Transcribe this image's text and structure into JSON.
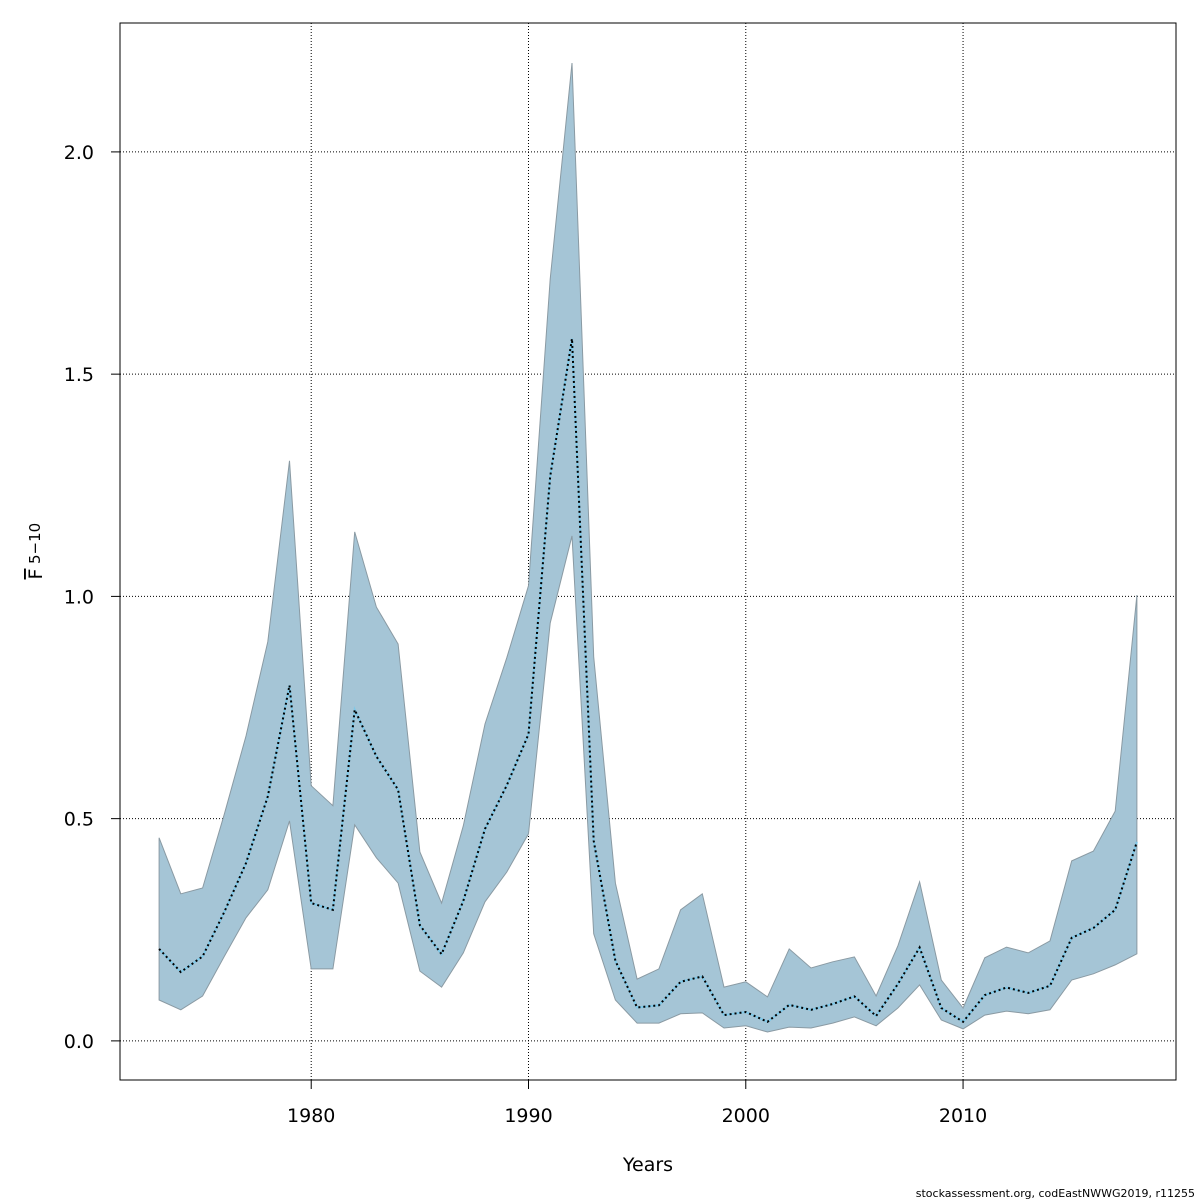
{
  "chart_data": {
    "type": "area",
    "xlabel": "Years",
    "ylabel_main": "F",
    "ylabel_sub": "5−10",
    "xlim": [
      1971.2,
      2019.8
    ],
    "ylim": [
      -0.088,
      2.29
    ],
    "xticks": [
      1980,
      1990,
      2000,
      2010
    ],
    "yticks": [
      0.0,
      0.5,
      1.0,
      1.5,
      2.0
    ],
    "ytick_labels": [
      "0.0",
      "0.5",
      "1.0",
      "1.5",
      "2.0"
    ],
    "grid": true,
    "colors": {
      "band": "#a5c5d6",
      "band_border": "#8a9aa3",
      "line": "#000000",
      "line_under": "#7ec8e8"
    },
    "x": [
      1973,
      1974,
      1975,
      1976,
      1977,
      1978,
      1979,
      1980,
      1981,
      1982,
      1983,
      1984,
      1985,
      1986,
      1987,
      1988,
      1989,
      1990,
      1991,
      1992,
      1993,
      1994,
      1995,
      1996,
      1997,
      1998,
      1999,
      2000,
      2001,
      2002,
      2003,
      2004,
      2005,
      2006,
      2007,
      2008,
      2009,
      2010,
      2011,
      2012,
      2013,
      2014,
      2015,
      2016,
      2017,
      2018
    ],
    "series": [
      {
        "role": "estimate",
        "values": [
          0.207,
          0.155,
          0.19,
          0.29,
          0.4,
          0.55,
          0.8,
          0.31,
          0.295,
          0.745,
          0.64,
          0.565,
          0.26,
          0.195,
          0.315,
          0.477,
          0.575,
          0.69,
          1.27,
          1.58,
          0.45,
          0.18,
          0.075,
          0.08,
          0.133,
          0.145,
          0.058,
          0.065,
          0.043,
          0.081,
          0.07,
          0.083,
          0.1,
          0.056,
          0.128,
          0.21,
          0.074,
          0.043,
          0.103,
          0.12,
          0.108,
          0.124,
          0.232,
          0.254,
          0.295,
          0.448
        ]
      },
      {
        "role": "upper",
        "values": [
          0.457,
          0.331,
          0.344,
          0.51,
          0.686,
          0.898,
          1.305,
          0.574,
          0.529,
          1.145,
          0.976,
          0.893,
          0.425,
          0.31,
          0.484,
          0.713,
          0.862,
          1.024,
          1.714,
          2.2,
          0.864,
          0.355,
          0.139,
          0.162,
          0.295,
          0.331,
          0.121,
          0.133,
          0.099,
          0.207,
          0.164,
          0.178,
          0.189,
          0.101,
          0.214,
          0.358,
          0.137,
          0.074,
          0.187,
          0.211,
          0.198,
          0.225,
          0.405,
          0.427,
          0.517,
          1.003
        ]
      },
      {
        "role": "lower",
        "values": [
          0.092,
          0.07,
          0.101,
          0.19,
          0.277,
          0.34,
          0.495,
          0.162,
          0.162,
          0.486,
          0.412,
          0.355,
          0.157,
          0.121,
          0.198,
          0.313,
          0.38,
          0.466,
          0.94,
          1.136,
          0.241,
          0.092,
          0.04,
          0.04,
          0.061,
          0.063,
          0.029,
          0.034,
          0.02,
          0.031,
          0.029,
          0.04,
          0.054,
          0.034,
          0.074,
          0.126,
          0.047,
          0.027,
          0.058,
          0.067,
          0.061,
          0.07,
          0.137,
          0.151,
          0.171,
          0.196
        ]
      }
    ]
  },
  "footer": "stockassessment.org, codEastNWWG2019, r11255"
}
